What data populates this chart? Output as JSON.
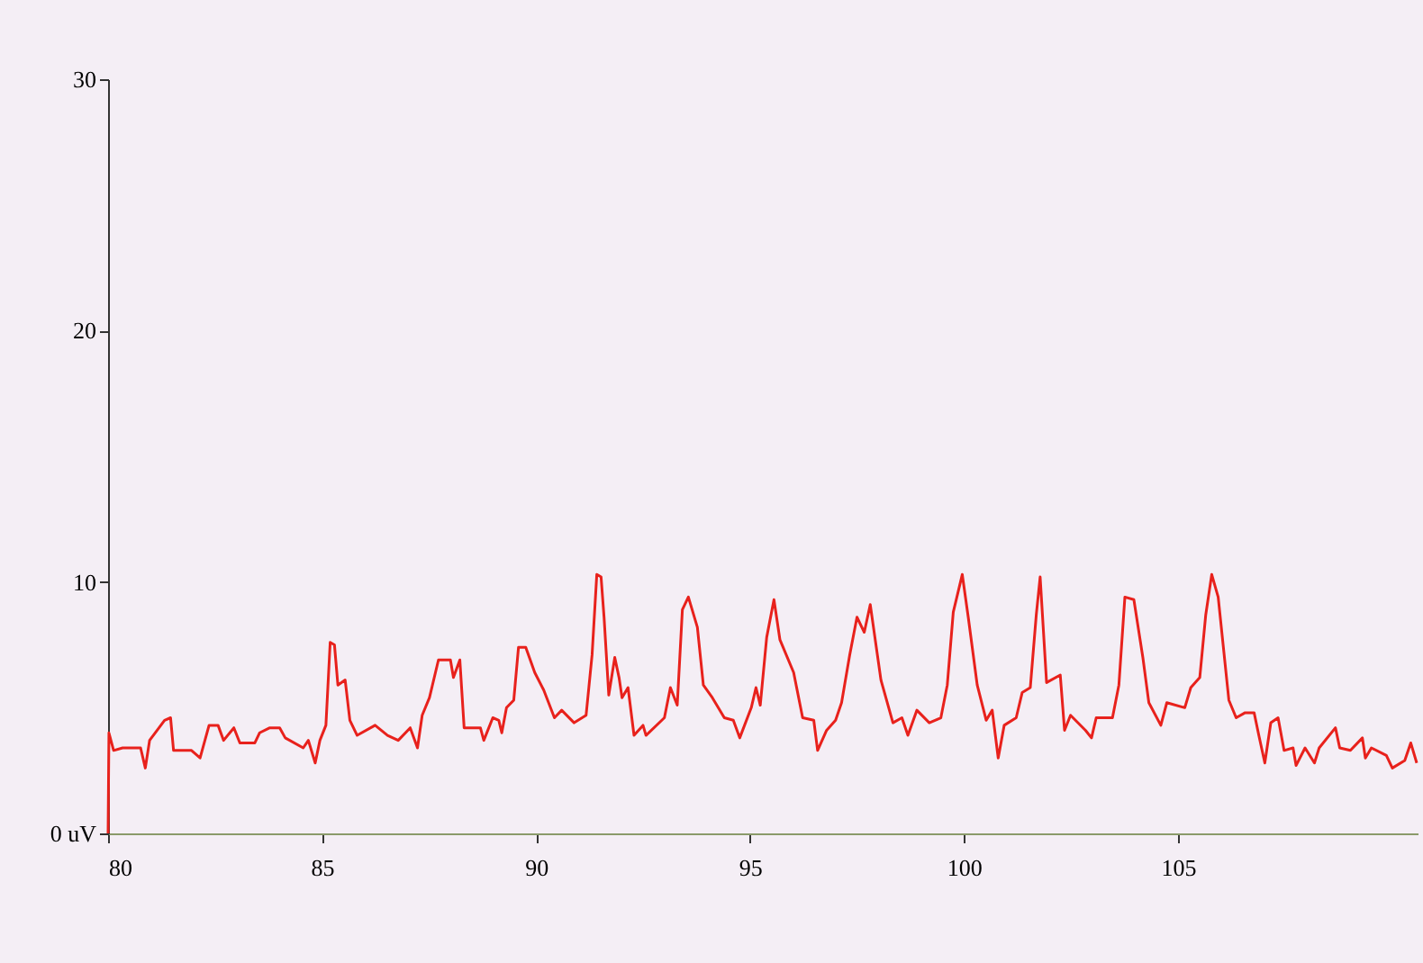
{
  "chart_data": {
    "type": "line",
    "grid": false,
    "marker": "none",
    "line_style": "solid",
    "xlim": [
      80,
      110.6
    ],
    "xticks": [
      80,
      85,
      90,
      95,
      100,
      105
    ],
    "ylim": [
      0,
      30
    ],
    "yticks": [
      {
        "value": 0,
        "label": "0 uV"
      },
      10,
      20,
      30
    ],
    "series": [
      {
        "color": "#e8211c",
        "x": [
          80.0,
          80.02,
          80.13,
          80.34,
          80.76,
          80.87,
          80.97,
          81.32,
          81.46,
          81.53,
          81.95,
          82.15,
          82.36,
          82.57,
          82.7,
          82.94,
          83.08,
          83.43,
          83.54,
          83.78,
          84.01,
          84.14,
          84.56,
          84.68,
          84.84,
          84.95,
          85.09,
          85.19,
          85.29,
          85.37,
          85.54,
          85.65,
          85.82,
          86.24,
          86.53,
          86.78,
          87.06,
          87.23,
          87.34,
          87.51,
          87.72,
          88.0,
          88.07,
          88.22,
          88.32,
          88.7,
          88.78,
          88.99,
          89.13,
          89.2,
          89.31,
          89.48,
          89.59,
          89.76,
          89.97,
          90.18,
          90.43,
          90.6,
          90.89,
          91.17,
          91.31,
          91.42,
          91.52,
          91.59,
          91.7,
          91.84,
          91.94,
          92.01,
          92.15,
          92.29,
          92.5,
          92.57,
          93.0,
          93.14,
          93.3,
          93.42,
          93.56,
          93.77,
          93.91,
          94.12,
          94.4,
          94.61,
          94.76,
          95.03,
          95.14,
          95.24,
          95.39,
          95.56,
          95.7,
          96.02,
          96.23,
          96.49,
          96.58,
          96.79,
          97.0,
          97.14,
          97.33,
          97.5,
          97.67,
          97.81,
          98.06,
          98.34,
          98.55,
          98.69,
          98.9,
          99.19,
          99.46,
          99.61,
          99.75,
          99.96,
          100.1,
          100.31,
          100.52,
          100.66,
          100.8,
          100.94,
          101.22,
          101.36,
          101.55,
          101.69,
          101.78,
          101.93,
          102.25,
          102.35,
          102.49,
          102.84,
          102.98,
          103.09,
          103.47,
          103.62,
          103.76,
          103.97,
          104.18,
          104.32,
          104.6,
          104.74,
          105.16,
          105.3,
          105.51,
          105.65,
          105.79,
          105.94,
          106.19,
          106.36,
          106.57,
          106.78,
          106.89,
          107.03,
          107.17,
          107.34,
          107.48,
          107.69,
          107.76,
          107.97,
          108.19,
          108.3,
          108.68,
          108.78,
          109.03,
          109.31,
          109.38,
          109.52,
          109.87,
          110.01,
          110.3,
          110.44,
          110.58
        ],
        "values": [
          0,
          4.0,
          3.3,
          3.4,
          3.4,
          2.6,
          3.7,
          4.5,
          4.6,
          3.3,
          3.3,
          3.0,
          4.3,
          4.3,
          3.7,
          4.2,
          3.6,
          3.6,
          4.0,
          4.2,
          4.2,
          3.8,
          3.4,
          3.7,
          2.8,
          3.7,
          4.3,
          7.6,
          7.5,
          5.9,
          6.1,
          4.5,
          3.9,
          4.3,
          3.9,
          3.7,
          4.2,
          3.4,
          4.7,
          5.4,
          6.9,
          6.9,
          6.2,
          6.9,
          4.2,
          4.2,
          3.7,
          4.6,
          4.5,
          4.0,
          5.0,
          5.3,
          7.4,
          7.4,
          6.4,
          5.7,
          4.6,
          4.9,
          4.4,
          4.7,
          7.1,
          10.3,
          10.2,
          8.6,
          5.5,
          7.0,
          6.2,
          5.4,
          5.8,
          3.9,
          4.3,
          3.9,
          4.6,
          5.8,
          5.1,
          8.9,
          9.4,
          8.2,
          5.9,
          5.4,
          4.6,
          4.5,
          3.8,
          5.0,
          5.8,
          5.1,
          7.8,
          9.3,
          7.7,
          6.4,
          4.6,
          4.5,
          3.3,
          4.1,
          4.5,
          5.2,
          7.1,
          8.6,
          8.0,
          9.1,
          6.1,
          4.4,
          4.6,
          3.9,
          4.9,
          4.4,
          4.6,
          5.9,
          8.8,
          10.3,
          8.6,
          5.9,
          4.5,
          4.9,
          3.0,
          4.3,
          4.6,
          5.6,
          5.8,
          8.7,
          10.2,
          6.0,
          6.3,
          4.1,
          4.7,
          4.1,
          3.8,
          4.6,
          4.6,
          5.9,
          9.4,
          9.3,
          7.0,
          5.2,
          4.3,
          5.2,
          5.0,
          5.8,
          6.2,
          8.7,
          10.3,
          9.4,
          5.3,
          4.6,
          4.8,
          4.8,
          3.9,
          2.8,
          4.4,
          4.6,
          3.3,
          3.4,
          2.7,
          3.4,
          2.8,
          3.4,
          4.2,
          3.4,
          3.3,
          3.8,
          3.0,
          3.4,
          3.1,
          2.6,
          2.9,
          3.6,
          2.8
        ]
      }
    ]
  }
}
